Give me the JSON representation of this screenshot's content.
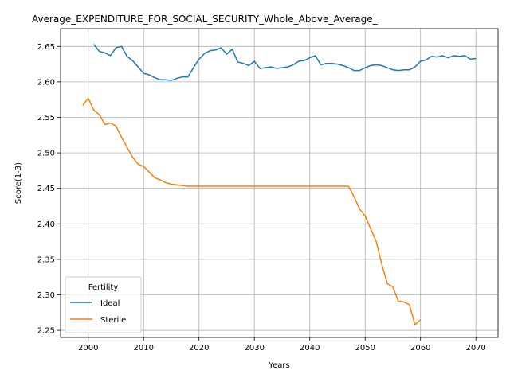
{
  "chart_data": {
    "type": "line",
    "title": "Average_EXPENDITURE_FOR_SOCIAL_SECURITY_Whole_Above_Average_",
    "xlabel": "Years",
    "ylabel": "Score(1-3)",
    "xlim": [
      1995,
      2074
    ],
    "ylim": [
      2.24,
      2.675
    ],
    "xticks": [
      2000,
      2010,
      2020,
      2030,
      2040,
      2050,
      2060,
      2070
    ],
    "xtick_labels": [
      "2000",
      "2010",
      "2020",
      "2030",
      "2040",
      "2050",
      "2060",
      "2070"
    ],
    "yticks": [
      2.25,
      2.3,
      2.35,
      2.4,
      2.45,
      2.5,
      2.55,
      2.6,
      2.65
    ],
    "ytick_labels": [
      "2.25",
      "2.30",
      "2.35",
      "2.40",
      "2.45",
      "2.50",
      "2.55",
      "2.60",
      "2.65"
    ],
    "grid": true,
    "legend": {
      "title": "Fertility",
      "placement": "lower-left"
    },
    "series": [
      {
        "name": "Ideal",
        "color": "#1f77b4",
        "x": [
          2001,
          2002,
          2003,
          2004,
          2005,
          2006,
          2007,
          2008,
          2009,
          2010,
          2011,
          2012,
          2013,
          2014,
          2015,
          2016,
          2017,
          2018,
          2019,
          2020,
          2021,
          2022,
          2023,
          2024,
          2025,
          2026,
          2027,
          2028,
          2029,
          2030,
          2031,
          2032,
          2033,
          2034,
          2035,
          2036,
          2037,
          2038,
          2039,
          2040,
          2041,
          2042,
          2043,
          2044,
          2045,
          2046,
          2047,
          2048,
          2049,
          2050,
          2051,
          2052,
          2053,
          2054,
          2055,
          2056,
          2057,
          2058,
          2059,
          2060,
          2061,
          2062,
          2063,
          2064,
          2065,
          2066,
          2067,
          2068,
          2069,
          2070
        ],
        "y": [
          2.653,
          2.643,
          2.641,
          2.637,
          2.648,
          2.65,
          2.636,
          2.63,
          2.621,
          2.612,
          2.61,
          2.606,
          2.603,
          2.603,
          2.602,
          2.605,
          2.607,
          2.607,
          2.62,
          2.632,
          2.64,
          2.644,
          2.645,
          2.648,
          2.639,
          2.646,
          2.628,
          2.626,
          2.623,
          2.629,
          2.619,
          2.62,
          2.621,
          2.619,
          2.62,
          2.621,
          2.624,
          2.629,
          2.63,
          2.634,
          2.637,
          2.624,
          2.626,
          2.626,
          2.625,
          2.623,
          2.62,
          2.616,
          2.616,
          2.62,
          2.623,
          2.624,
          2.623,
          2.62,
          2.617,
          2.616,
          2.617,
          2.617,
          2.621,
          2.629,
          2.631,
          2.636,
          2.635,
          2.637,
          2.634,
          2.637,
          2.636,
          2.637,
          2.632,
          2.633
        ]
      },
      {
        "name": "Sterile",
        "color": "#ff7f0e",
        "x": [
          1999,
          2000,
          2001,
          2002,
          2003,
          2004,
          2005,
          2006,
          2007,
          2008,
          2009,
          2010,
          2011,
          2012,
          2013,
          2014,
          2015,
          2016,
          2017,
          2018,
          2019,
          2020,
          2021,
          2022,
          2023,
          2024,
          2025,
          2026,
          2027,
          2028,
          2029,
          2030,
          2031,
          2032,
          2033,
          2034,
          2035,
          2036,
          2037,
          2038,
          2039,
          2040,
          2041,
          2042,
          2043,
          2044,
          2045,
          2046,
          2047,
          2048,
          2049,
          2050,
          2051,
          2052,
          2053,
          2054,
          2055,
          2056,
          2057,
          2058,
          2059,
          2060
        ],
        "y": [
          2.567,
          2.577,
          2.56,
          2.554,
          2.54,
          2.542,
          2.538,
          2.522,
          2.508,
          2.494,
          2.484,
          2.481,
          2.473,
          2.465,
          2.462,
          2.458,
          2.456,
          2.455,
          2.454,
          2.453,
          2.453,
          2.453,
          2.453,
          2.453,
          2.453,
          2.453,
          2.453,
          2.453,
          2.453,
          2.453,
          2.453,
          2.453,
          2.453,
          2.453,
          2.453,
          2.453,
          2.453,
          2.453,
          2.453,
          2.453,
          2.453,
          2.453,
          2.453,
          2.453,
          2.453,
          2.453,
          2.453,
          2.453,
          2.453,
          2.438,
          2.421,
          2.411,
          2.393,
          2.375,
          2.343,
          2.316,
          2.311,
          2.291,
          2.29,
          2.286,
          2.258,
          2.265
        ]
      }
    ]
  }
}
